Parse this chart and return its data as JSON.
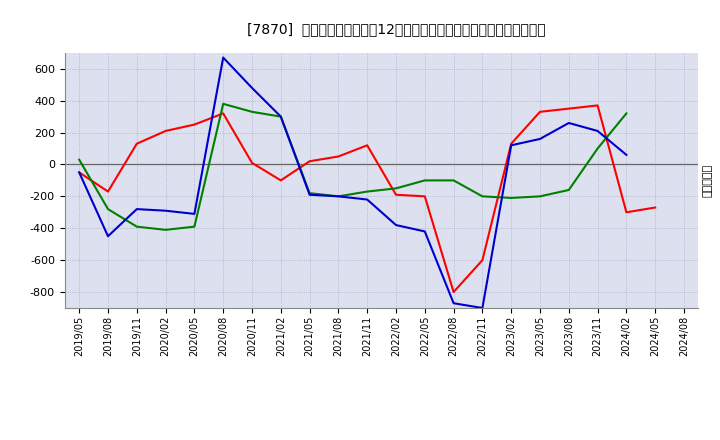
{
  "title": "[7870]  キャッシュフローの12か月移動合計の対前年同期増減額の推移",
  "ylabel": "（百万円）",
  "x_labels": [
    "2019/05",
    "2019/08",
    "2019/11",
    "2020/02",
    "2020/05",
    "2020/08",
    "2020/11",
    "2021/02",
    "2021/05",
    "2021/08",
    "2021/11",
    "2022/02",
    "2022/05",
    "2022/08",
    "2022/11",
    "2023/02",
    "2023/05",
    "2023/08",
    "2023/11",
    "2024/02",
    "2024/05",
    "2024/08"
  ],
  "operating_cf": [
    -50,
    -170,
    130,
    210,
    250,
    320,
    10,
    -100,
    20,
    50,
    120,
    -190,
    -200,
    -800,
    -600,
    130,
    330,
    350,
    370,
    -300,
    -270,
    null
  ],
  "investing_cf": [
    30,
    -280,
    -390,
    -410,
    -390,
    380,
    330,
    300,
    -180,
    -200,
    -170,
    -150,
    -100,
    -100,
    -200,
    -210,
    -200,
    -160,
    100,
    320,
    null,
    null
  ],
  "free_cf": [
    -50,
    -450,
    -280,
    -290,
    -310,
    670,
    480,
    300,
    -190,
    -200,
    -220,
    -380,
    -420,
    -870,
    -900,
    120,
    160,
    260,
    210,
    60,
    null,
    null
  ],
  "ylim": [
    -900,
    700
  ],
  "yticks": [
    -800,
    -600,
    -400,
    -200,
    0,
    200,
    400,
    600
  ],
  "bg_color": "#ffffff",
  "plot_bg_color": "#dde0ee",
  "operating_color": "#ff0000",
  "investing_color": "#008000",
  "free_color": "#0000cc"
}
